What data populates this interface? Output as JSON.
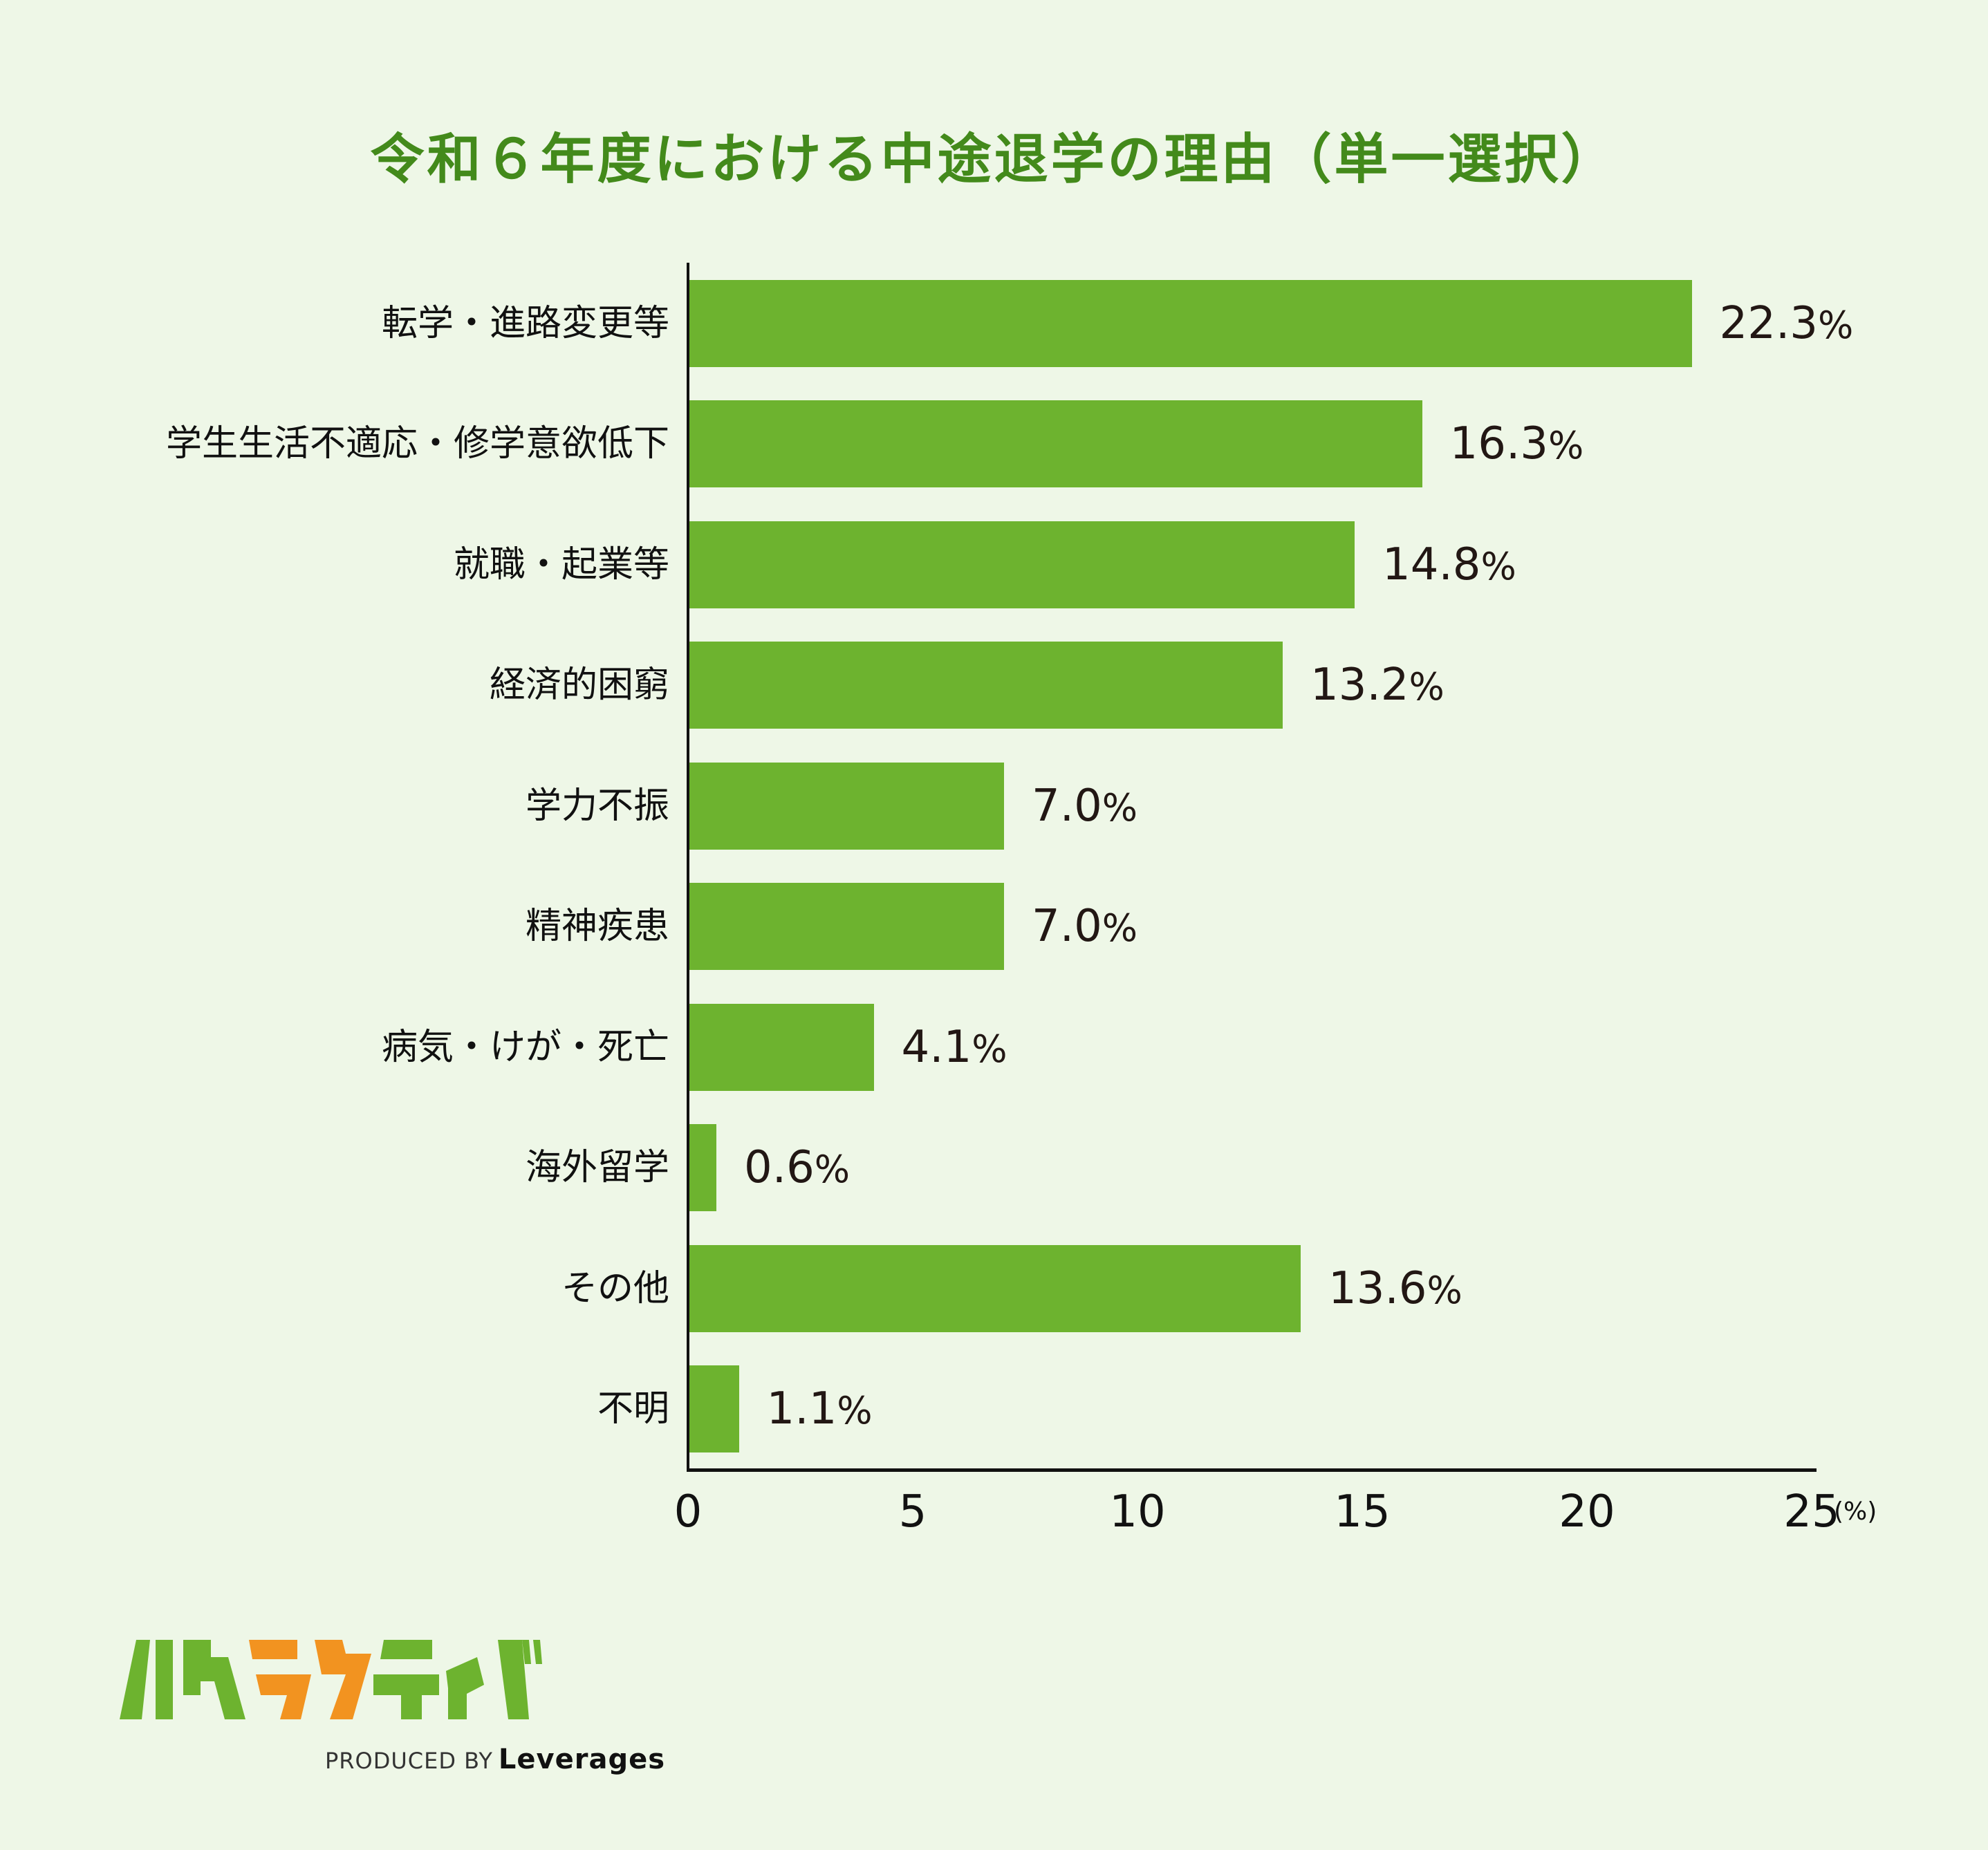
{
  "title": "令和６年度における中途退学の理由（単一選択）",
  "colors": {
    "background": "#eef7e7",
    "title": "#438a1b",
    "bar": "#6db32f",
    "axis": "#111111",
    "value_text": "#221714",
    "logo_green": "#6db32f",
    "logo_orange": "#f29320"
  },
  "axis": {
    "ticks": [
      "0",
      "5",
      "10",
      "15",
      "20",
      "25"
    ],
    "unit": "(%)"
  },
  "bars": [
    {
      "label": "転学・進路変更等",
      "value": 22.3,
      "display": "22.3",
      "pct": "%"
    },
    {
      "label": "学生生活不適応・修学意欲低下",
      "value": 16.3,
      "display": "16.3",
      "pct": "%"
    },
    {
      "label": "就職・起業等",
      "value": 14.8,
      "display": "14.8",
      "pct": "%"
    },
    {
      "label": "経済的困窮",
      "value": 13.2,
      "display": "13.2",
      "pct": "%"
    },
    {
      "label": "学力不振",
      "value": 7.0,
      "display": "7.0",
      "pct": "%"
    },
    {
      "label": "精神疾患",
      "value": 7.0,
      "display": "7.0",
      "pct": "%"
    },
    {
      "label": "病気・けが・死亡",
      "value": 4.1,
      "display": "4.1",
      "pct": "%"
    },
    {
      "label": "海外留学",
      "value": 0.6,
      "display": "0.6",
      "pct": "%"
    },
    {
      "label": "その他",
      "value": 13.6,
      "display": "13.6",
      "pct": "%"
    },
    {
      "label": "不明",
      "value": 1.1,
      "display": "1.1",
      "pct": "%"
    }
  ],
  "logo": {
    "name": "ハタラクティブ",
    "produced_by": "PRODUCED BY",
    "brand": "Leverages"
  },
  "chart_data": {
    "type": "bar",
    "orientation": "horizontal",
    "title": "令和６年度における中途退学の理由（単一選択）",
    "categories": [
      "転学・進路変更等",
      "学生生活不適応・修学意欲低下",
      "就職・起業等",
      "経済的困窮",
      "学力不振",
      "精神疾患",
      "病気・けが・死亡",
      "海外留学",
      "その他",
      "不明"
    ],
    "values": [
      22.3,
      16.3,
      14.8,
      13.2,
      7.0,
      7.0,
      4.1,
      0.6,
      13.6,
      1.1
    ],
    "data_labels": [
      "22.3%",
      "16.3%",
      "14.8%",
      "13.2%",
      "7.0%",
      "7.0%",
      "4.1%",
      "0.6%",
      "13.6%",
      "1.1%"
    ],
    "xlabel": "(%)",
    "ylabel": "",
    "xlim": [
      0,
      25
    ],
    "xticks": [
      0,
      5,
      10,
      15,
      20,
      25
    ],
    "grid": false,
    "legend": null,
    "bar_color": "#6db32f"
  }
}
